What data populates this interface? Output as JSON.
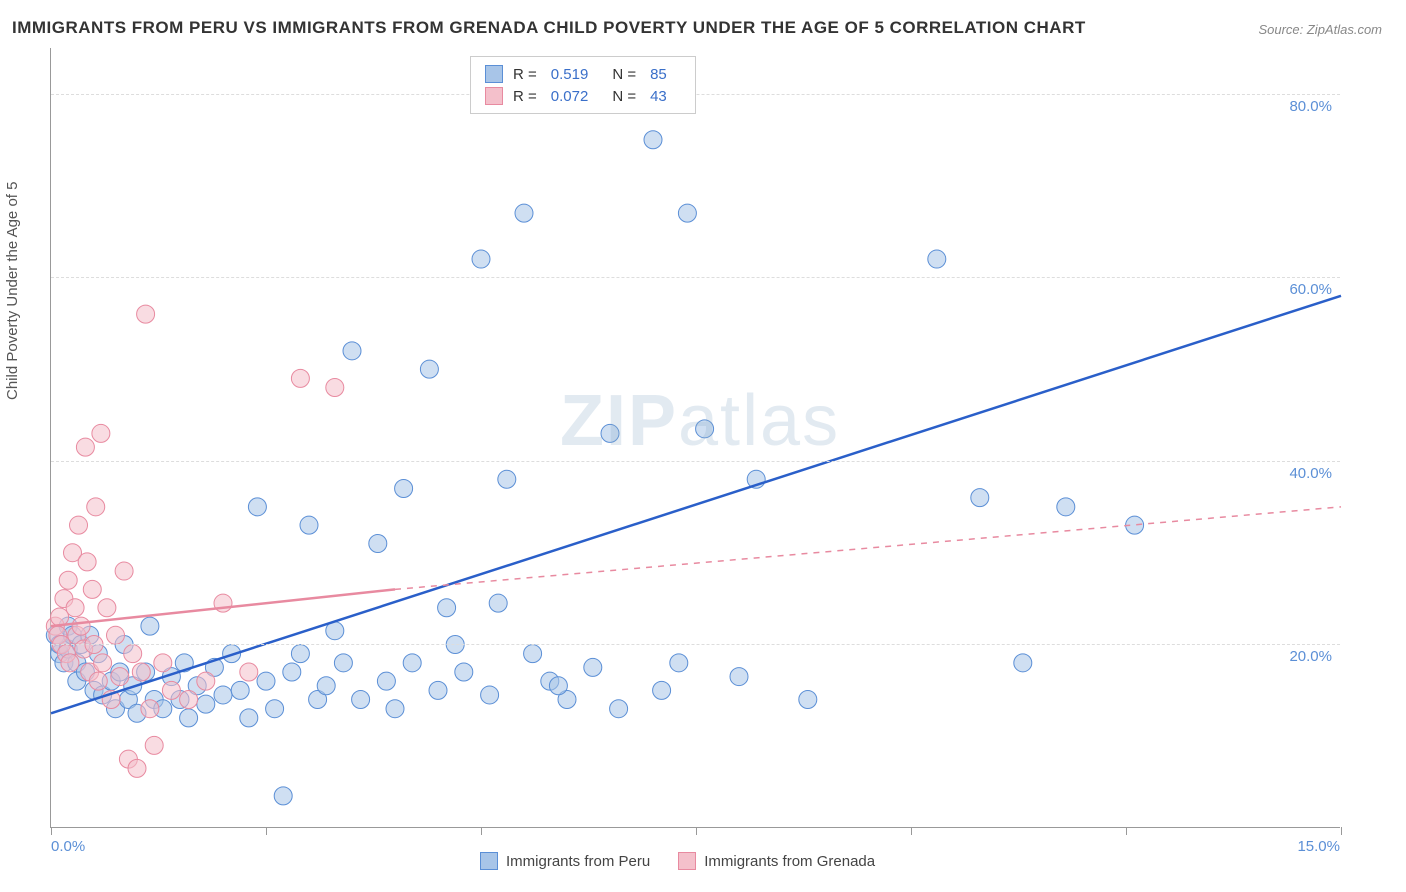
{
  "title": "IMMIGRANTS FROM PERU VS IMMIGRANTS FROM GRENADA CHILD POVERTY UNDER THE AGE OF 5 CORRELATION CHART",
  "source": "Source: ZipAtlas.com",
  "watermark_zip": "ZIP",
  "watermark_atlas": "atlas",
  "y_axis_title": "Child Poverty Under the Age of 5",
  "chart": {
    "type": "scatter",
    "background_color": "#ffffff",
    "grid_color": "#dddddd",
    "axis_color": "#999999",
    "xlim": [
      0,
      15
    ],
    "ylim": [
      0,
      85
    ],
    "x_tick_start_label": "0.0%",
    "x_tick_end_label": "15.0%",
    "x_tick_count": 7,
    "y_ticks": [
      20,
      40,
      60,
      80
    ],
    "y_tick_labels": [
      "20.0%",
      "40.0%",
      "60.0%",
      "80.0%"
    ],
    "marker_radius": 9,
    "marker_opacity": 0.55,
    "line_width_solid": 2.5,
    "line_width_dash": 1.5,
    "title_fontsize": 17,
    "label_fontsize": 15,
    "tick_fontsize": 15,
    "tick_color": "#5b8fd6"
  },
  "legend_top": {
    "rows": [
      {
        "swatch_fill": "#a8c5e8",
        "swatch_border": "#5b8fd6",
        "r_label": "R =",
        "r_val": "0.519",
        "n_label": "N =",
        "n_val": "85"
      },
      {
        "swatch_fill": "#f4c0cb",
        "swatch_border": "#e88aa0",
        "r_label": "R =",
        "r_val": "0.072",
        "n_label": "N =",
        "n_val": "43"
      }
    ]
  },
  "legend_bottom": {
    "items": [
      {
        "swatch_fill": "#a8c5e8",
        "swatch_border": "#5b8fd6",
        "label": "Immigrants from Peru"
      },
      {
        "swatch_fill": "#f4c0cb",
        "swatch_border": "#e88aa0",
        "label": "Immigrants from Grenada"
      }
    ]
  },
  "series": [
    {
      "name": "Immigrants from Peru",
      "marker_fill": "#a8c5e8",
      "marker_stroke": "#5b8fd6",
      "trend_color": "#2a5fc9",
      "trend_solid_from": [
        0,
        12.5
      ],
      "trend_solid_to": [
        15,
        58
      ],
      "points": [
        [
          0.05,
          21
        ],
        [
          0.1,
          19
        ],
        [
          0.1,
          20
        ],
        [
          0.15,
          18
        ],
        [
          0.2,
          22
        ],
        [
          0.2,
          19.5
        ],
        [
          0.25,
          21
        ],
        [
          0.3,
          18
        ],
        [
          0.3,
          16
        ],
        [
          0.35,
          20
        ],
        [
          0.4,
          17
        ],
        [
          0.45,
          21
        ],
        [
          0.5,
          15
        ],
        [
          0.55,
          19
        ],
        [
          0.6,
          14.5
        ],
        [
          0.7,
          16
        ],
        [
          0.75,
          13
        ],
        [
          0.8,
          17
        ],
        [
          0.85,
          20
        ],
        [
          0.9,
          14
        ],
        [
          0.95,
          15.5
        ],
        [
          1.0,
          12.5
        ],
        [
          1.1,
          17
        ],
        [
          1.15,
          22
        ],
        [
          1.2,
          14
        ],
        [
          1.3,
          13
        ],
        [
          1.4,
          16.5
        ],
        [
          1.5,
          14
        ],
        [
          1.55,
          18
        ],
        [
          1.6,
          12
        ],
        [
          1.7,
          15.5
        ],
        [
          1.8,
          13.5
        ],
        [
          1.9,
          17.5
        ],
        [
          2.0,
          14.5
        ],
        [
          2.1,
          19
        ],
        [
          2.2,
          15
        ],
        [
          2.3,
          12
        ],
        [
          2.4,
          35
        ],
        [
          2.5,
          16
        ],
        [
          2.6,
          13
        ],
        [
          2.7,
          3.5
        ],
        [
          2.8,
          17
        ],
        [
          2.9,
          19
        ],
        [
          3.0,
          33
        ],
        [
          3.1,
          14
        ],
        [
          3.2,
          15.5
        ],
        [
          3.3,
          21.5
        ],
        [
          3.4,
          18
        ],
        [
          3.5,
          52
        ],
        [
          3.6,
          14
        ],
        [
          3.8,
          31
        ],
        [
          3.9,
          16
        ],
        [
          4.0,
          13
        ],
        [
          4.1,
          37
        ],
        [
          4.2,
          18
        ],
        [
          4.4,
          50
        ],
        [
          4.5,
          15
        ],
        [
          4.6,
          24
        ],
        [
          4.8,
          17
        ],
        [
          5.0,
          62
        ],
        [
          5.1,
          14.5
        ],
        [
          5.2,
          24.5
        ],
        [
          5.3,
          38
        ],
        [
          5.5,
          67
        ],
        [
          5.6,
          19
        ],
        [
          5.8,
          16
        ],
        [
          6.0,
          14
        ],
        [
          6.3,
          17.5
        ],
        [
          6.5,
          43
        ],
        [
          6.6,
          13
        ],
        [
          7.0,
          75
        ],
        [
          7.1,
          15
        ],
        [
          7.3,
          18
        ],
        [
          7.4,
          67
        ],
        [
          7.6,
          43.5
        ],
        [
          8.0,
          16.5
        ],
        [
          8.2,
          38
        ],
        [
          8.8,
          14
        ],
        [
          10.3,
          62
        ],
        [
          10.8,
          36
        ],
        [
          11.3,
          18
        ],
        [
          11.8,
          35
        ],
        [
          12.6,
          33
        ],
        [
          5.9,
          15.5
        ],
        [
          4.7,
          20
        ]
      ]
    },
    {
      "name": "Immigrants from Grenada",
      "marker_fill": "#f4c0cb",
      "marker_stroke": "#e88aa0",
      "trend_color": "#e88aa0",
      "trend_solid_from": [
        0,
        22
      ],
      "trend_solid_to": [
        4.0,
        26
      ],
      "trend_dash_to": [
        15,
        35
      ],
      "points": [
        [
          0.05,
          22
        ],
        [
          0.08,
          21
        ],
        [
          0.1,
          23
        ],
        [
          0.12,
          20
        ],
        [
          0.15,
          25
        ],
        [
          0.18,
          19
        ],
        [
          0.2,
          27
        ],
        [
          0.22,
          18
        ],
        [
          0.25,
          30
        ],
        [
          0.28,
          24
        ],
        [
          0.3,
          21
        ],
        [
          0.32,
          33
        ],
        [
          0.35,
          22
        ],
        [
          0.38,
          19.5
        ],
        [
          0.4,
          41.5
        ],
        [
          0.42,
          29
        ],
        [
          0.45,
          17
        ],
        [
          0.48,
          26
        ],
        [
          0.5,
          20
        ],
        [
          0.52,
          35
        ],
        [
          0.55,
          16
        ],
        [
          0.58,
          43
        ],
        [
          0.6,
          18
        ],
        [
          0.65,
          24
        ],
        [
          0.7,
          14
        ],
        [
          0.75,
          21
        ],
        [
          0.8,
          16.5
        ],
        [
          0.85,
          28
        ],
        [
          0.9,
          7.5
        ],
        [
          0.95,
          19
        ],
        [
          1.0,
          6.5
        ],
        [
          1.05,
          17
        ],
        [
          1.1,
          56
        ],
        [
          1.15,
          13
        ],
        [
          1.2,
          9
        ],
        [
          1.3,
          18
        ],
        [
          1.4,
          15
        ],
        [
          1.6,
          14
        ],
        [
          1.8,
          16
        ],
        [
          2.0,
          24.5
        ],
        [
          2.3,
          17
        ],
        [
          2.9,
          49
        ],
        [
          3.3,
          48
        ]
      ]
    }
  ]
}
